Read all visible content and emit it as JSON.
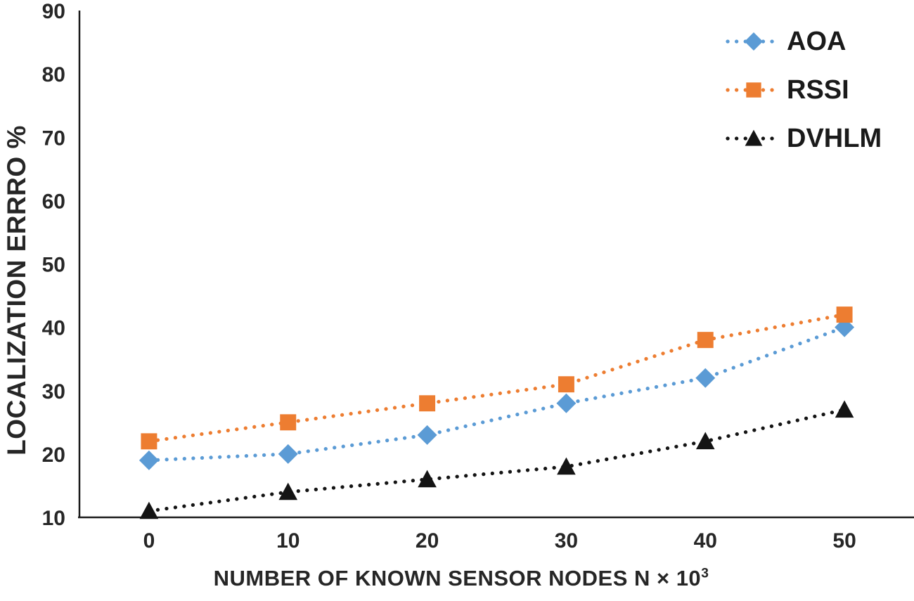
{
  "chart_data": {
    "type": "line",
    "title": "",
    "ylabel": "LOCALIZATION ERRRO %",
    "xlabel": "NUMBER OF KNOWN SENSOR NODES N × 10",
    "xlabel_superscript": "3",
    "x": [
      0,
      10,
      20,
      30,
      40,
      50
    ],
    "xtick_labels": [
      "0",
      "10",
      "20",
      "30",
      "40",
      "50"
    ],
    "ytick_labels": [
      "10",
      "20",
      "30",
      "40",
      "50",
      "60",
      "70",
      "80",
      "90"
    ],
    "yticks": [
      10,
      20,
      30,
      40,
      50,
      60,
      70,
      80,
      90
    ],
    "ylim": [
      10,
      90
    ],
    "grid": false,
    "line_style": "dotted",
    "legend_position": "top-right",
    "axis_color": "#1a1a1a",
    "tick_color": "#262626",
    "series": [
      {
        "name": "AOA",
        "marker": "diamond",
        "color": "#5B9BD5",
        "values": [
          19,
          20,
          23,
          28,
          32,
          40
        ]
      },
      {
        "name": "RSSI",
        "marker": "square",
        "color": "#ED7D31",
        "values": [
          22,
          25,
          28,
          31,
          38,
          42
        ]
      },
      {
        "name": "DVHLM",
        "marker": "triangle",
        "color": "#141414",
        "values": [
          11,
          14,
          16,
          18,
          22,
          27
        ]
      }
    ]
  }
}
